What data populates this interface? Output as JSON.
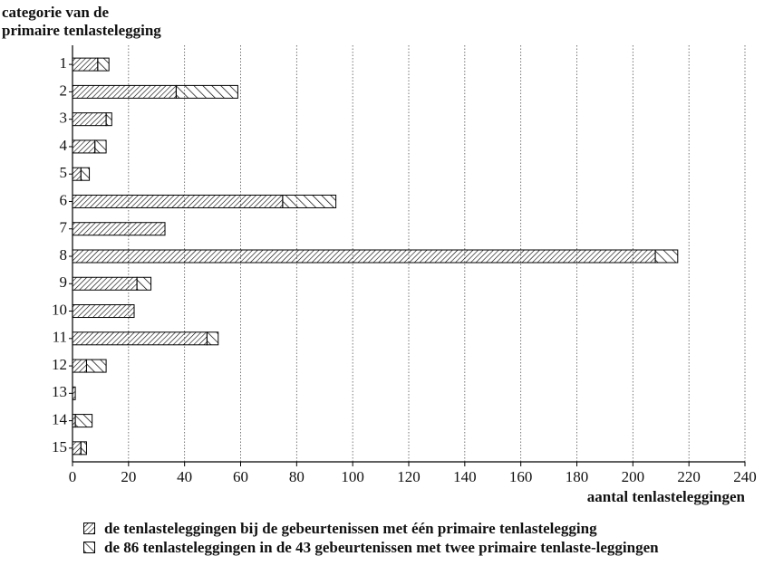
{
  "chart_data": {
    "type": "stacked-barh",
    "ylabel": [
      "categorie van de",
      "primaire tenlastelegging"
    ],
    "xlabel": "aantal tenlasteleggingen",
    "categories": [
      "1",
      "2",
      "3",
      "4",
      "5",
      "6",
      "7",
      "8",
      "9",
      "10",
      "11",
      "12",
      "13",
      "14",
      "15"
    ],
    "series": [
      {
        "name": "de tenlasteleggingen bij de gebeurtenissen met één primaire tenlastelegging",
        "color": "#000000",
        "values": [
          9,
          37,
          12,
          8,
          3,
          75,
          33,
          208,
          23,
          22,
          48,
          5,
          1,
          1,
          3
        ]
      },
      {
        "name": "de 86 tenlasteleggingen in de 43 gebeurtenissen met twee primaire tenlaste-leggingen",
        "color": "#000000",
        "values": [
          4,
          22,
          2,
          4,
          3,
          19,
          0,
          8,
          5,
          0,
          4,
          7,
          0,
          6,
          2
        ]
      }
    ],
    "xlim": [
      0,
      240
    ],
    "xticks": [
      0,
      20,
      40,
      60,
      80,
      100,
      120,
      140,
      160,
      180,
      200,
      220,
      240
    ],
    "grid": true
  }
}
